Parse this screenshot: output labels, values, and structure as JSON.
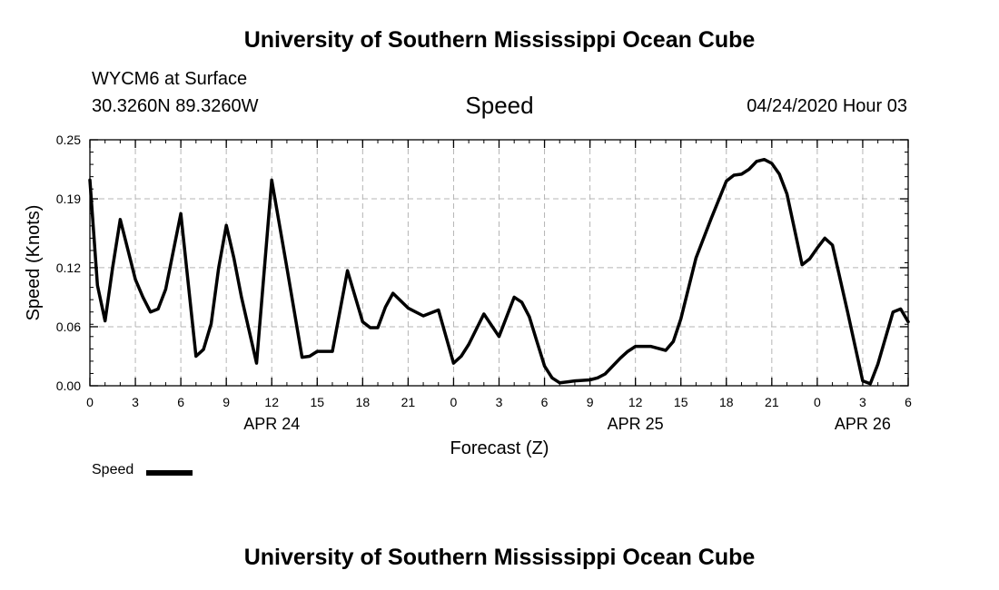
{
  "page": {
    "title_top": "University of Southern Mississippi Ocean Cube",
    "title_bottom": "University of Southern Mississippi Ocean Cube",
    "station": "WYCM6 at Surface",
    "location": "30.3260N 89.3260W",
    "variable": "Speed",
    "datetime": "04/24/2020 Hour 03"
  },
  "chart_data": {
    "type": "line",
    "title": "Speed",
    "xlabel": "Forecast (Z)",
    "ylabel": "Speed (Knots)",
    "xlim": [
      0,
      54
    ],
    "ylim": [
      0,
      0.25
    ],
    "grid": true,
    "y_ticks": [
      "0.00",
      "0.06",
      "0.12",
      "0.19",
      "0.25"
    ],
    "x_ticks": [
      {
        "x": 0,
        "label": "0"
      },
      {
        "x": 3,
        "label": "3"
      },
      {
        "x": 6,
        "label": "6"
      },
      {
        "x": 9,
        "label": "9"
      },
      {
        "x": 12,
        "label": "12"
      },
      {
        "x": 15,
        "label": "15"
      },
      {
        "x": 18,
        "label": "18"
      },
      {
        "x": 21,
        "label": "21"
      },
      {
        "x": 24,
        "label": "0"
      },
      {
        "x": 27,
        "label": "3"
      },
      {
        "x": 30,
        "label": "6"
      },
      {
        "x": 33,
        "label": "9"
      },
      {
        "x": 36,
        "label": "12"
      },
      {
        "x": 39,
        "label": "15"
      },
      {
        "x": 42,
        "label": "18"
      },
      {
        "x": 45,
        "label": "21"
      },
      {
        "x": 48,
        "label": "0"
      },
      {
        "x": 51,
        "label": "3"
      },
      {
        "x": 54,
        "label": "6"
      }
    ],
    "date_labels": [
      {
        "x": 12,
        "label": "APR 24"
      },
      {
        "x": 36,
        "label": "APR 25"
      },
      {
        "x": 51,
        "label": "APR 26"
      }
    ],
    "legend": {
      "label": "Speed",
      "position": "bottom-left"
    },
    "series": [
      {
        "name": "Speed",
        "color": "#000000",
        "x": [
          0,
          0.5,
          1,
          1.5,
          2,
          3,
          3.5,
          4,
          4.5,
          5,
          6,
          7,
          7.5,
          8,
          8.5,
          9,
          9.5,
          10,
          11,
          12,
          13,
          14,
          14.5,
          15,
          16,
          17,
          18,
          18.5,
          19,
          19.5,
          20,
          21,
          22,
          23,
          24,
          24.5,
          25,
          26,
          27,
          27.5,
          28,
          28.5,
          29,
          29.5,
          30,
          30.5,
          31,
          31.5,
          32,
          33,
          33.5,
          34,
          35,
          35.5,
          36,
          37,
          38,
          38.5,
          39,
          40,
          41,
          42,
          42.5,
          43,
          43.5,
          44,
          44.5,
          45,
          45.5,
          46,
          47,
          47.5,
          48,
          48.5,
          49,
          50,
          51,
          51.5,
          52,
          53,
          53.5,
          54
        ],
        "y": [
          0.209,
          0.102,
          0.066,
          0.12,
          0.169,
          0.108,
          0.09,
          0.075,
          0.078,
          0.098,
          0.175,
          0.03,
          0.037,
          0.063,
          0.12,
          0.163,
          0.13,
          0.09,
          0.023,
          0.209,
          0.12,
          0.029,
          0.03,
          0.035,
          0.035,
          0.117,
          0.065,
          0.059,
          0.059,
          0.08,
          0.094,
          0.079,
          0.071,
          0.077,
          0.023,
          0.03,
          0.042,
          0.073,
          0.05,
          0.07,
          0.09,
          0.085,
          0.07,
          0.045,
          0.02,
          0.008,
          0.003,
          0.004,
          0.005,
          0.006,
          0.008,
          0.012,
          0.028,
          0.035,
          0.04,
          0.04,
          0.036,
          0.045,
          0.068,
          0.13,
          0.17,
          0.208,
          0.214,
          0.215,
          0.22,
          0.228,
          0.23,
          0.226,
          0.215,
          0.195,
          0.123,
          0.129,
          0.14,
          0.15,
          0.143,
          0.075,
          0.005,
          0.002,
          0.022,
          0.075,
          0.078,
          0.065
        ]
      }
    ]
  }
}
